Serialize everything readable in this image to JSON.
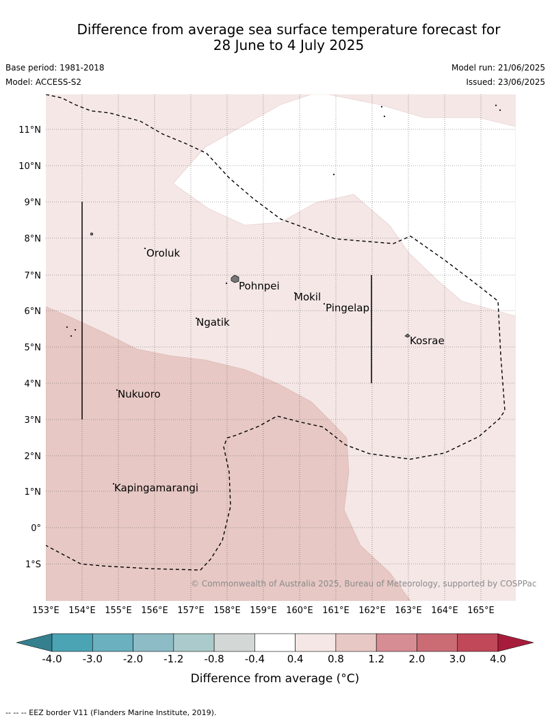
{
  "title": {
    "line1": "Difference from average sea surface temperature forecast for",
    "line2": "28 June to 4 July 2025"
  },
  "header": {
    "base_period": "Base period: 1981-2018",
    "model": "Model: ACCESS-S2",
    "model_run": "Model run: 21/06/2025",
    "issued": "Issued: 23/06/2025"
  },
  "map": {
    "lat_labels": [
      "11°N",
      "10°N",
      "9°N",
      "8°N",
      "7°N",
      "6°N",
      "5°N",
      "4°N",
      "3°N",
      "2°N",
      "1°N",
      "0°",
      "1°S"
    ],
    "lon_labels": [
      "153°E",
      "154°E",
      "155°E",
      "156°E",
      "157°E",
      "158°E",
      "159°E",
      "160°E",
      "161°E",
      "162°E",
      "163°E",
      "164°E",
      "165°E"
    ],
    "places": [
      {
        "name": "Oroluk"
      },
      {
        "name": "Pohnpei"
      },
      {
        "name": "Mokil"
      },
      {
        "name": "Pingelap"
      },
      {
        "name": "Ngatik"
      },
      {
        "name": "Kosrae"
      },
      {
        "name": "Nukuoro"
      },
      {
        "name": "Kapingamarangi"
      }
    ],
    "copyright": "© Commonwealth of Australia 2025, Bureau of Meteorology, supported by COSPPac"
  },
  "colorbar": {
    "ticks": [
      "-4.0",
      "-3.0",
      "-2.0",
      "-1.2",
      "-0.8",
      "-0.4",
      "0.4",
      "0.8",
      "1.2",
      "2.0",
      "3.0",
      "4.0"
    ],
    "colors": [
      "#4aa4b4",
      "#6bb0be",
      "#8dbcc6",
      "#abcacc",
      "#d3d7d6",
      "#ffffff",
      "#f4e7e6",
      "#e7c8c4",
      "#d78d94",
      "#cb6c75",
      "#c04858"
    ],
    "under_color": "#35808f",
    "over_color": "#a81c3b",
    "label": "Difference from average (°C)"
  },
  "footer": "--  --  -- EEZ border V11 (Flanders Marine Institute, 2019)."
}
